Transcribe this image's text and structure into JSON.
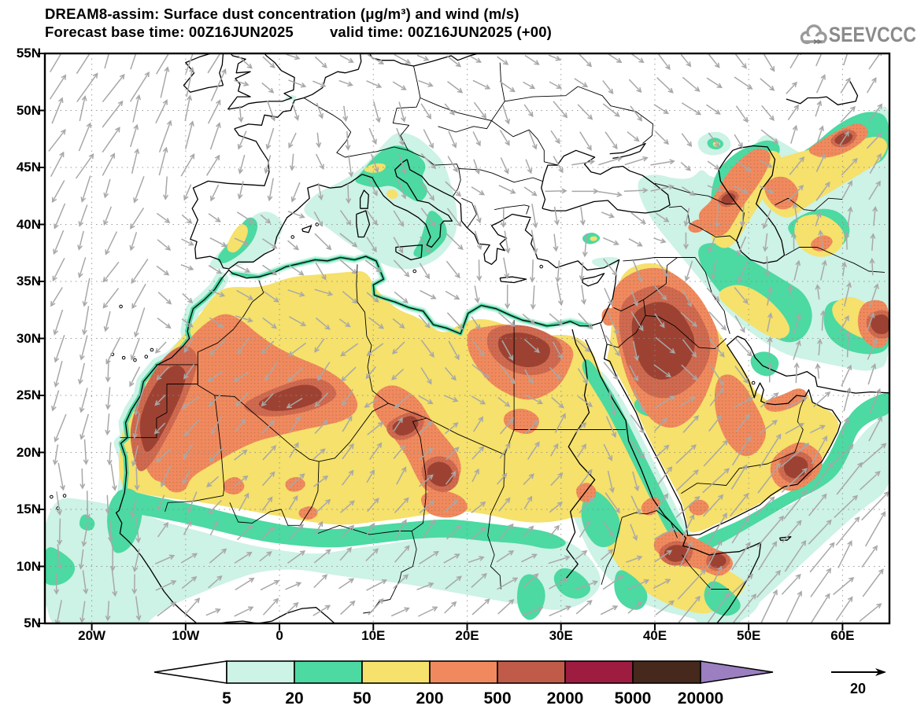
{
  "header": {
    "title_line1": "DREAM8-assim: Surface dust concentration (μg/m³) and wind (m/s)",
    "forecast_base": "Forecast base time: 00Z16JUN2025",
    "valid_time": "valid time: 00Z16JUN2025 (+00)"
  },
  "logo": {
    "text": "SEEVCCC",
    "color": "#8b8b8b"
  },
  "map": {
    "lat_ticks": [
      "55N",
      "50N",
      "45N",
      "40N",
      "35N",
      "30N",
      "25N",
      "20N",
      "15N",
      "10N",
      "5N"
    ],
    "lon_ticks": [
      "20W",
      "10W",
      "0",
      "10E",
      "20E",
      "30E",
      "40E",
      "50E",
      "60E"
    ],
    "colors": {
      "cyan": "#cdf2e6",
      "teal": "#4cd9a2",
      "yellow": "#f5e16b",
      "orange": "#f08a5e",
      "red": "#cf6a50",
      "dark_red": "#9d4232",
      "coast": "#000000",
      "wind": "#a8a8a8",
      "grid": "#8c8c8c"
    }
  },
  "legend": {
    "values": [
      "5",
      "20",
      "50",
      "200",
      "500",
      "2000",
      "5000",
      "20000"
    ],
    "colors": [
      "#ffffff",
      "#cdf2e6",
      "#4cd9a2",
      "#f5e16b",
      "#f08a5e",
      "#c05b49",
      "#9d1c40",
      "#46291c",
      "#9b7fc0"
    ]
  },
  "wind_reference": {
    "value": "20"
  },
  "chart_data": {
    "type": "heatmap",
    "variable": "surface dust concentration",
    "units": "μg/m³",
    "overlay": "wind vectors (m/s)",
    "model": "DREAM8-assim",
    "forecast_base_time": "00Z16JUN2025",
    "valid_time": "00Z16JUN2025",
    "forecast_offset_hours": 0,
    "lat_axis_ticks": [
      "55N",
      "50N",
      "45N",
      "40N",
      "35N",
      "30N",
      "25N",
      "20N",
      "15N",
      "10N",
      "5N"
    ],
    "lon_axis_ticks": [
      "20W",
      "10W",
      "0",
      "10E",
      "20E",
      "30E",
      "40E",
      "50E",
      "60E"
    ],
    "scale_thresholds_ug_m3": [
      5,
      20,
      50,
      200,
      500,
      2000,
      5000,
      20000
    ],
    "scale_colors": [
      "#ffffff",
      "#cdf2e6",
      "#4cd9a2",
      "#f5e16b",
      "#f08a5e",
      "#c05b49",
      "#9d1c40",
      "#46291c",
      "#9b7fc0"
    ],
    "wind_reference_m_s": 20,
    "dust_maxima_regions": [
      "coastal Western Sahara–Mauritania",
      "central Algeria–Mali",
      "SE Algeria–Niger",
      "Chad",
      "NW Egypt–E Libya",
      "N Saudi Arabia–Iraq",
      "S Oman coast",
      "Djibouti–N Somalia",
      "W Caspian coast"
    ]
  }
}
